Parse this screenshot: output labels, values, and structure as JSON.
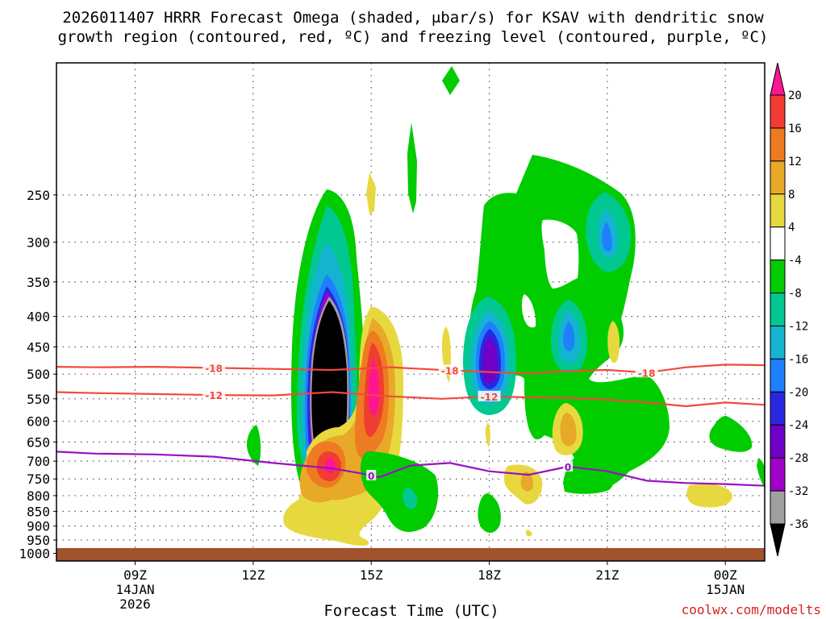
{
  "title": {
    "line1": "2026011407 HRRR Forecast Omega (shaded, μbar/s) for KSAV with dendritic snow",
    "line2": "growth region (contoured, red, ºC) and freezing level (contoured, purple, ºC)"
  },
  "credit": "coolwx.com/modelts",
  "chart_data": {
    "type": "heatmap",
    "title": "2026011407 HRRR Forecast Omega (shaded, μbar/s) for KSAV with dendritic snow growth region (contoured, red, ºC) and freezing level (contoured, purple, ºC)",
    "xlabel": "Forecast Time (UTC)",
    "ylabel": "",
    "x_range_hours": [
      7,
      25
    ],
    "y_range_hPa": [
      1030,
      150
    ],
    "y_axis": "pressure (hPa), log scale, inverted",
    "x_ticks": [
      {
        "hour": 9,
        "label": "09Z",
        "sub1": "14JAN",
        "sub2": "2026"
      },
      {
        "hour": 12,
        "label": "12Z",
        "sub1": "",
        "sub2": ""
      },
      {
        "hour": 15,
        "label": "15Z",
        "sub1": "",
        "sub2": ""
      },
      {
        "hour": 18,
        "label": "18Z",
        "sub1": "",
        "sub2": ""
      },
      {
        "hour": 21,
        "label": "21Z",
        "sub1": "",
        "sub2": ""
      },
      {
        "hour": 24,
        "label": "00Z",
        "sub1": "15JAN",
        "sub2": ""
      }
    ],
    "y_ticks": [
      250,
      300,
      350,
      400,
      450,
      500,
      550,
      600,
      650,
      700,
      750,
      800,
      850,
      900,
      950,
      1000
    ],
    "grid": true,
    "colorbar": {
      "levels": [
        20,
        16,
        12,
        8,
        4,
        -4,
        -8,
        -12,
        -16,
        -20,
        -24,
        -28,
        -32,
        -36
      ],
      "colors": [
        "#ff1493",
        "#f03c32",
        "#ee7a22",
        "#e8a828",
        "#e8d840",
        "#ffffff",
        "#00cc00",
        "#00c890",
        "#14b4d0",
        "#1e80ff",
        "#2828e0",
        "#7000c8",
        "#a000c8",
        "#a0a0a0",
        "#000000"
      ]
    },
    "omega_regions": [
      {
        "id": "black-max",
        "hour": 14.0,
        "pressure": 535,
        "min_value": -36
      },
      {
        "id": "magenta-max",
        "hour": 18.1,
        "pressure": 535,
        "min_value": -24
      },
      {
        "id": "orange-max",
        "hour": 14.1,
        "pressure": 720,
        "max_value": 16
      },
      {
        "id": "red-max",
        "hour": 15.0,
        "pressure": 560,
        "max_value": 16
      }
    ],
    "series": [
      {
        "name": "dgz -18C",
        "label": "-18",
        "color": "#f04a3c",
        "hours": [
          7.0,
          8.0,
          9.5,
          11.0,
          12.5,
          14.0,
          15.5,
          16.8,
          18.0,
          19.0,
          20.0,
          21.0,
          22.0,
          23.0,
          24.0,
          25.0
        ],
        "pressure": [
          486,
          487,
          486,
          488,
          490,
          492,
          487,
          492,
          496,
          499,
          494,
          492,
          497,
          487,
          482,
          483
        ]
      },
      {
        "name": "dgz -12C",
        "label": "-12",
        "color": "#f04a3c",
        "hours": [
          7.0,
          8.0,
          9.5,
          11.0,
          12.5,
          14.0,
          15.5,
          16.8,
          18.0,
          19.0,
          20.0,
          21.0,
          22.0,
          23.0,
          24.0,
          25.0
        ],
        "pressure": [
          536,
          538,
          540,
          542,
          543,
          536,
          545,
          550,
          545,
          547,
          548,
          552,
          558,
          566,
          558,
          563
        ]
      },
      {
        "name": "freezing level 0C",
        "label": "0",
        "color": "#9a10c0",
        "hours": [
          7.0,
          8.0,
          9.5,
          11.0,
          12.5,
          14.0,
          14.8,
          15.2,
          16.0,
          17.0,
          18.0,
          19.0,
          20.0,
          21.0,
          22.0,
          23.0,
          24.0,
          25.0
        ],
        "pressure": [
          675,
          680,
          682,
          688,
          705,
          720,
          735,
          745,
          712,
          705,
          728,
          738,
          715,
          728,
          755,
          762,
          765,
          770
        ]
      }
    ]
  }
}
